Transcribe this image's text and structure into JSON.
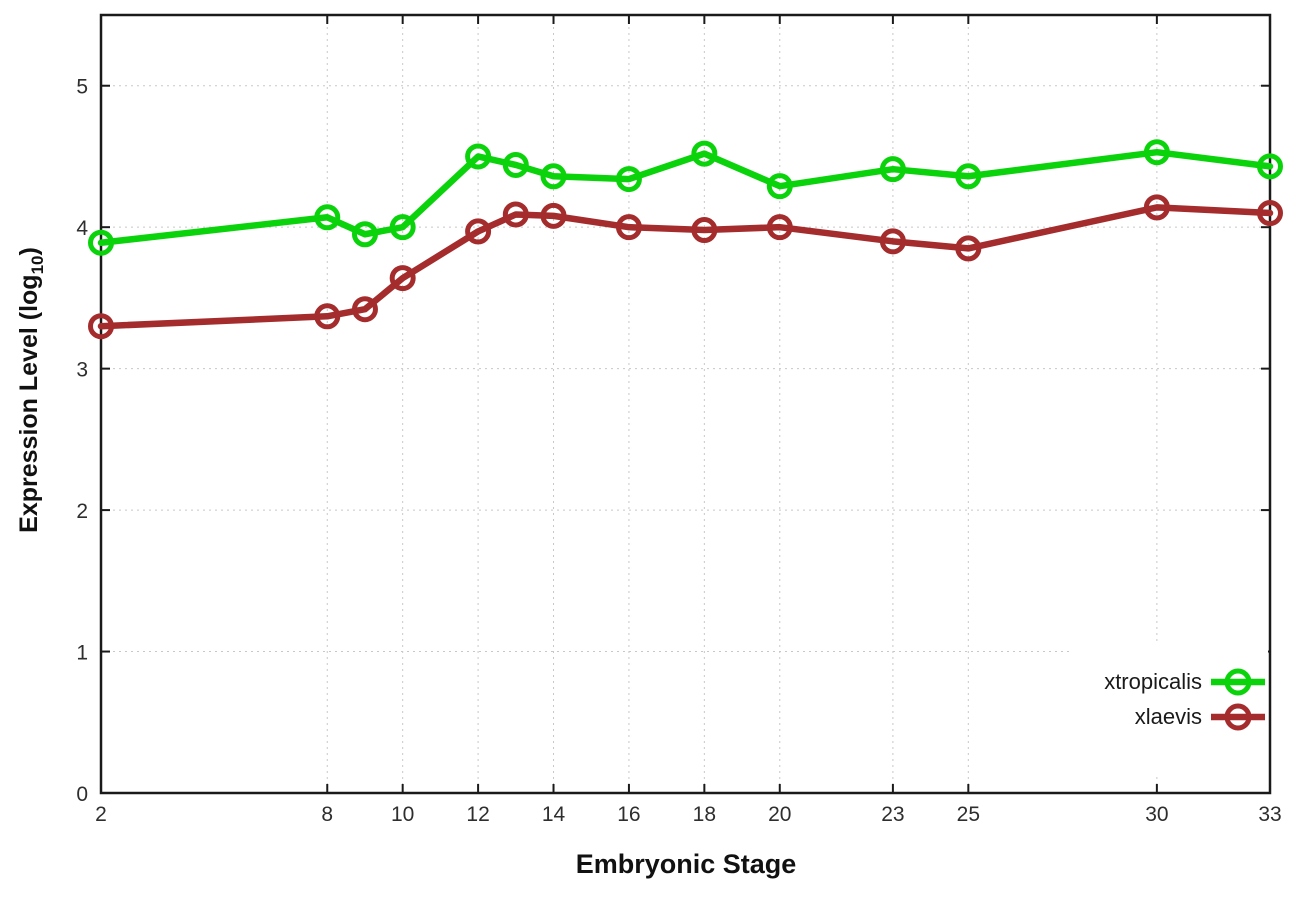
{
  "chart_data": {
    "type": "line",
    "title": "",
    "xlabel": "Embryonic Stage",
    "ylabel": {
      "text_before_sub": "Expression Level (log",
      "subscript": "10",
      "text_after_sub": ")"
    },
    "x": [
      2,
      8,
      9,
      10,
      12,
      13,
      14,
      16,
      18,
      20,
      23,
      25,
      30,
      33
    ],
    "series": [
      {
        "name": "xtropicalis",
        "color": "#0bd30b",
        "values": [
          3.89,
          4.07,
          3.95,
          4.0,
          4.5,
          4.44,
          4.36,
          4.34,
          4.52,
          4.29,
          4.41,
          4.36,
          4.53,
          4.43
        ]
      },
      {
        "name": "xlaevis",
        "color": "#a42c2c",
        "values": [
          3.3,
          3.37,
          3.42,
          3.64,
          3.97,
          4.09,
          4.08,
          4.0,
          3.98,
          4.0,
          3.9,
          3.85,
          4.14,
          4.1
        ]
      }
    ],
    "x_ticks": [
      2,
      8,
      10,
      12,
      14,
      16,
      18,
      20,
      23,
      25,
      30,
      33
    ],
    "y_ticks": [
      0,
      1,
      2,
      3,
      4,
      5
    ],
    "xlim": [
      2,
      33
    ],
    "ylim": [
      0,
      5.5
    ],
    "grid": true,
    "grid_color": "#c8c8c8",
    "frame_color": "#1a1a1a",
    "legend_position": "inside-bottom-right",
    "marker": "open-circle"
  }
}
